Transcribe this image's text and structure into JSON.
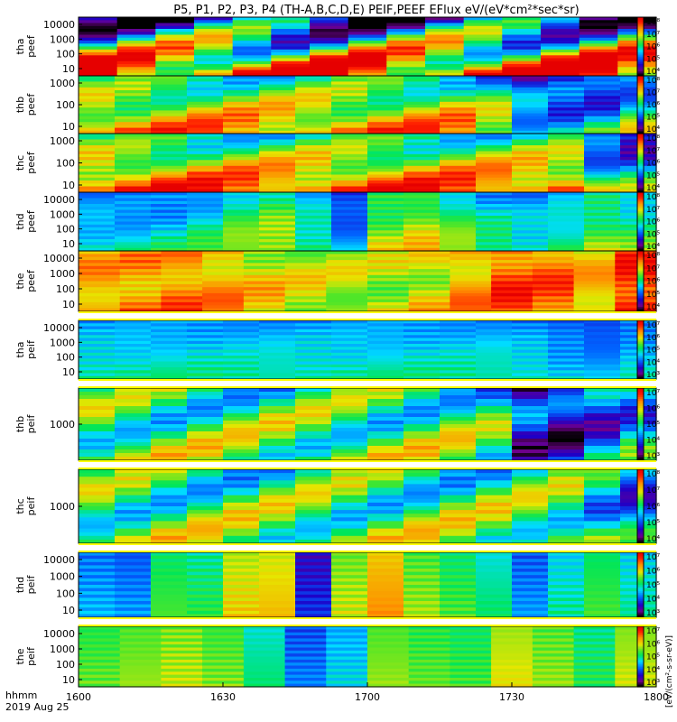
{
  "title": "P5, P1, P2, P3, P4 (TH-A,B,C,D,E) PEIF,PEEF EFlux eV/(eV*cm²*sec*sr)",
  "footer": {
    "line1": "hhmm",
    "line2": "2019 Aug 25"
  },
  "colorbar_label": "[eV/(cm²-s-sr-eV)]",
  "colors": {
    "frame": "#000000",
    "fill_gap": "#ffffff",
    "bar_stripe": "#ffff00"
  },
  "chart_data": {
    "type": "heatmap",
    "xlabel": "hhmm",
    "x_ticks": [
      "1600",
      "1630",
      "1700",
      "1730",
      "1800"
    ],
    "x_range": [
      1600,
      1800
    ],
    "panels": [
      {
        "name": "thaPeef",
        "label": [
          "tha",
          "peef"
        ],
        "yticks": [
          "10",
          "100",
          "1000",
          "10000"
        ],
        "cbticks": [
          "10⁴",
          "10⁵",
          "10⁶",
          "10⁷",
          "10⁸"
        ],
        "base": [
          0.55,
          0.55,
          0.55,
          0.58,
          0.56,
          0.55,
          0.55,
          0.56,
          0.55,
          0.58,
          0.58,
          0.58,
          0.6,
          0.6,
          0.6
        ],
        "slope": [
          0.75,
          -0.35
        ]
      },
      {
        "name": "thbPeef",
        "label": [
          "thb",
          "peef"
        ],
        "yticks": [
          "10",
          "100",
          "1000"
        ],
        "cbticks": [
          "10⁴",
          "10⁵",
          "10⁶",
          "10⁷",
          "10⁸"
        ],
        "base": [
          0.65,
          0.65,
          0.65,
          0.65,
          0.65,
          0.65,
          0.65,
          0.65,
          0.65,
          0.65,
          0.65,
          0.55,
          0.32,
          0.3,
          0.33,
          0.45
        ],
        "slope": [
          0.35,
          0.15
        ]
      },
      {
        "name": "thcPeef",
        "label": [
          "thc",
          "peef"
        ],
        "yticks": [
          "10",
          "100",
          "1000"
        ],
        "cbticks": [
          "10⁴",
          "10⁵",
          "10⁶",
          "10⁷",
          "10⁸"
        ],
        "base": [
          0.68,
          0.68,
          0.68,
          0.68,
          0.68,
          0.68,
          0.68,
          0.68,
          0.68,
          0.68,
          0.68,
          0.68,
          0.68,
          0.68,
          0.4,
          0.35
        ],
        "slope": [
          0.45,
          0.15
        ]
      },
      {
        "name": "thdPeef",
        "label": [
          "thd",
          "peef"
        ],
        "yticks": [
          "10",
          "100",
          "1000",
          "10000"
        ],
        "cbticks": [
          "10⁴",
          "10⁵",
          "10⁶",
          "10⁷",
          "10⁸"
        ],
        "base": [
          0.38,
          0.38,
          0.4,
          0.45,
          0.55,
          0.6,
          0.45,
          0.3,
          0.6,
          0.65,
          0.55,
          0.45,
          0.4,
          0.45,
          0.55,
          0.5
        ],
        "slope": [
          0.2,
          0.05
        ]
      },
      {
        "name": "thePeef",
        "label": [
          "the",
          "peef"
        ],
        "yticks": [
          "10",
          "100",
          "1000",
          "10000"
        ],
        "cbticks": [
          "10⁴",
          "10⁵",
          "10⁶",
          "10⁷",
          "10⁸"
        ],
        "base": [
          0.78,
          0.8,
          0.82,
          0.78,
          0.72,
          0.68,
          0.66,
          0.66,
          0.7,
          0.78,
          0.88,
          0.85,
          0.75,
          0.92
        ],
        "slope": [
          0.05,
          0.08
        ]
      },
      {
        "name": "thaPeif",
        "label": [
          "tha",
          "peif"
        ],
        "yticks": [
          "10",
          "100",
          "1000",
          "10000"
        ],
        "cbticks": [
          "10³",
          "10⁴",
          "10⁵",
          "10⁶",
          "10⁷"
        ],
        "base": [
          0.42,
          0.42,
          0.42,
          0.42,
          0.42,
          0.42,
          0.42,
          0.42,
          0.42,
          0.42,
          0.42,
          0.42,
          0.4,
          0.35,
          0.32,
          0.38
        ],
        "slope": [
          0.15,
          0.02
        ]
      },
      {
        "name": "thbPeif",
        "label": [
          "thb",
          "peif"
        ],
        "yticks": [
          "1000"
        ],
        "cbticks": [
          "10³",
          "10⁴",
          "10⁵",
          "10⁶",
          "10⁷"
        ],
        "base": [
          0.55,
          0.55,
          0.55,
          0.55,
          0.55,
          0.55,
          0.55,
          0.55,
          0.55,
          0.55,
          0.55,
          0.5,
          0.2,
          0.18,
          0.3,
          0.4
        ],
        "slope": [
          0.1,
          0.2
        ]
      },
      {
        "name": "thcPeif",
        "label": [
          "thc",
          "peif"
        ],
        "yticks": [
          "1000"
        ],
        "cbticks": [
          "10⁴",
          "10⁵",
          "10⁶",
          "10⁷",
          "10⁸"
        ],
        "base": [
          0.55,
          0.55,
          0.55,
          0.55,
          0.55,
          0.55,
          0.55,
          0.55,
          0.55,
          0.55,
          0.55,
          0.55,
          0.55,
          0.55,
          0.45,
          0.35
        ],
        "slope": [
          0.1,
          0.2
        ]
      },
      {
        "name": "thdPeif",
        "label": [
          "thd",
          "peif"
        ],
        "yticks": [
          "10",
          "100",
          "1000",
          "10000"
        ],
        "cbticks": [
          "10³",
          "10⁴",
          "10⁵",
          "10⁶",
          "10⁷"
        ],
        "base": [
          0.35,
          0.32,
          0.55,
          0.52,
          0.7,
          0.72,
          0.2,
          0.65,
          0.78,
          0.62,
          0.55,
          0.48,
          0.32,
          0.45,
          0.55,
          0.45
        ],
        "slope": [
          0.08,
          0.0
        ]
      },
      {
        "name": "thePeif",
        "label": [
          "the",
          "peif"
        ],
        "yticks": [
          "10",
          "100",
          "1000",
          "10000"
        ],
        "cbticks": [
          "10³",
          "10⁴",
          "10⁵",
          "10⁶",
          "10⁷"
        ],
        "base": [
          0.58,
          0.62,
          0.65,
          0.6,
          0.48,
          0.3,
          0.4,
          0.62,
          0.58,
          0.55,
          0.68,
          0.62,
          0.52,
          0.66
        ],
        "slope": [
          0.06,
          0.0
        ]
      }
    ]
  }
}
